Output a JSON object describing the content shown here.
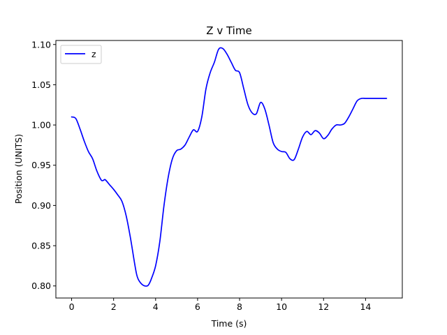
{
  "chart_data": {
    "type": "line",
    "title": "Z v Time",
    "xlabel": "Time (s)",
    "ylabel": "Position (UNITS)",
    "xlim": [
      -0.75,
      15.75
    ],
    "ylim": [
      0.785,
      1.105
    ],
    "xticks": [
      0,
      2,
      4,
      6,
      8,
      10,
      12,
      14
    ],
    "xtick_labels": [
      "0",
      "2",
      "4",
      "6",
      "8",
      "10",
      "12",
      "14"
    ],
    "yticks": [
      0.8,
      0.85,
      0.9,
      0.95,
      1.0,
      1.05,
      1.1
    ],
    "ytick_labels": [
      "0.80",
      "0.85",
      "0.90",
      "0.95",
      "1.00",
      "1.05",
      "1.10"
    ],
    "grid": false,
    "legend_position": "upper left",
    "series": [
      {
        "name": "z",
        "color": "#0000ff",
        "x": [
          0.0,
          0.2,
          0.4,
          0.6,
          0.8,
          1.0,
          1.2,
          1.4,
          1.5,
          1.6,
          1.8,
          2.0,
          2.2,
          2.4,
          2.6,
          2.8,
          3.0,
          3.1,
          3.2,
          3.4,
          3.6,
          3.7,
          3.8,
          4.0,
          4.2,
          4.4,
          4.6,
          4.8,
          5.0,
          5.2,
          5.4,
          5.6,
          5.8,
          6.0,
          6.2,
          6.4,
          6.6,
          6.8,
          7.0,
          7.2,
          7.4,
          7.6,
          7.8,
          8.0,
          8.2,
          8.4,
          8.6,
          8.8,
          9.0,
          9.2,
          9.4,
          9.6,
          9.8,
          10.0,
          10.2,
          10.4,
          10.6,
          10.8,
          11.0,
          11.2,
          11.4,
          11.6,
          11.8,
          12.0,
          12.2,
          12.4,
          12.6,
          12.8,
          13.0,
          13.2,
          13.4,
          13.6,
          13.8,
          14.0,
          14.2,
          14.4,
          14.6,
          14.8,
          15.0
        ],
        "y": [
          1.01,
          1.008,
          0.995,
          0.98,
          0.967,
          0.958,
          0.943,
          0.932,
          0.931,
          0.932,
          0.926,
          0.92,
          0.913,
          0.905,
          0.887,
          0.86,
          0.828,
          0.814,
          0.807,
          0.801,
          0.8,
          0.803,
          0.809,
          0.825,
          0.855,
          0.9,
          0.935,
          0.958,
          0.968,
          0.97,
          0.975,
          0.985,
          0.994,
          0.992,
          1.01,
          1.045,
          1.065,
          1.078,
          1.094,
          1.095,
          1.088,
          1.078,
          1.068,
          1.065,
          1.045,
          1.025,
          1.015,
          1.014,
          1.028,
          1.02,
          1.0,
          0.978,
          0.97,
          0.967,
          0.966,
          0.958,
          0.957,
          0.97,
          0.985,
          0.992,
          0.988,
          0.993,
          0.99,
          0.983,
          0.987,
          0.995,
          1.0,
          1.0,
          1.002,
          1.01,
          1.02,
          1.03,
          1.033,
          1.033,
          1.033,
          1.033,
          1.033,
          1.033,
          1.033
        ]
      }
    ]
  }
}
